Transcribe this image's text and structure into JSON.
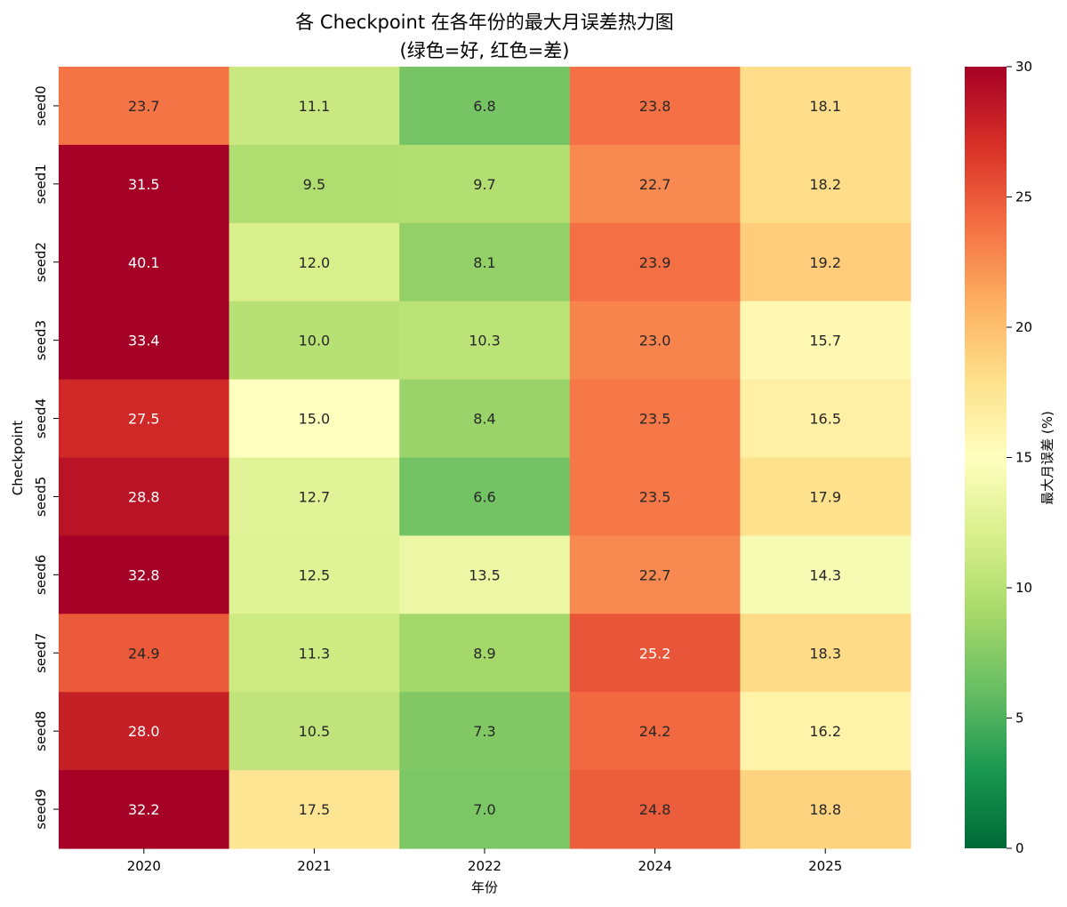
{
  "chart_data": {
    "type": "heatmap",
    "title": "各 Checkpoint 在各年份的最大月误差热力图",
    "subtitle": "(绿色=好, 红色=差)",
    "xlabel": "年份",
    "ylabel": "Checkpoint",
    "x_categories": [
      "2020",
      "2021",
      "2022",
      "2024",
      "2025"
    ],
    "y_categories": [
      "seed0",
      "seed1",
      "seed2",
      "seed3",
      "seed4",
      "seed5",
      "seed6",
      "seed7",
      "seed8",
      "seed9"
    ],
    "values": [
      [
        23.7,
        11.1,
        6.8,
        23.8,
        18.1
      ],
      [
        31.5,
        9.5,
        9.7,
        22.7,
        18.2
      ],
      [
        40.1,
        12.0,
        8.1,
        23.9,
        19.2
      ],
      [
        33.4,
        10.0,
        10.3,
        23.0,
        15.7
      ],
      [
        27.5,
        15.0,
        8.4,
        23.5,
        16.5
      ],
      [
        28.8,
        12.7,
        6.6,
        23.5,
        17.9
      ],
      [
        32.8,
        12.5,
        13.5,
        22.7,
        14.3
      ],
      [
        24.9,
        11.3,
        8.9,
        25.2,
        18.3
      ],
      [
        28.0,
        10.5,
        7.3,
        24.2,
        16.2
      ],
      [
        32.2,
        17.5,
        7.0,
        24.8,
        18.8
      ]
    ],
    "value_format": "0.1f",
    "colormap": "RdYlGn_r",
    "colorbar": {
      "label": "最大月误差 (%)",
      "range": [
        0,
        30
      ],
      "ticks": [
        "0",
        "5",
        "10",
        "15",
        "20",
        "25",
        "30"
      ]
    }
  }
}
